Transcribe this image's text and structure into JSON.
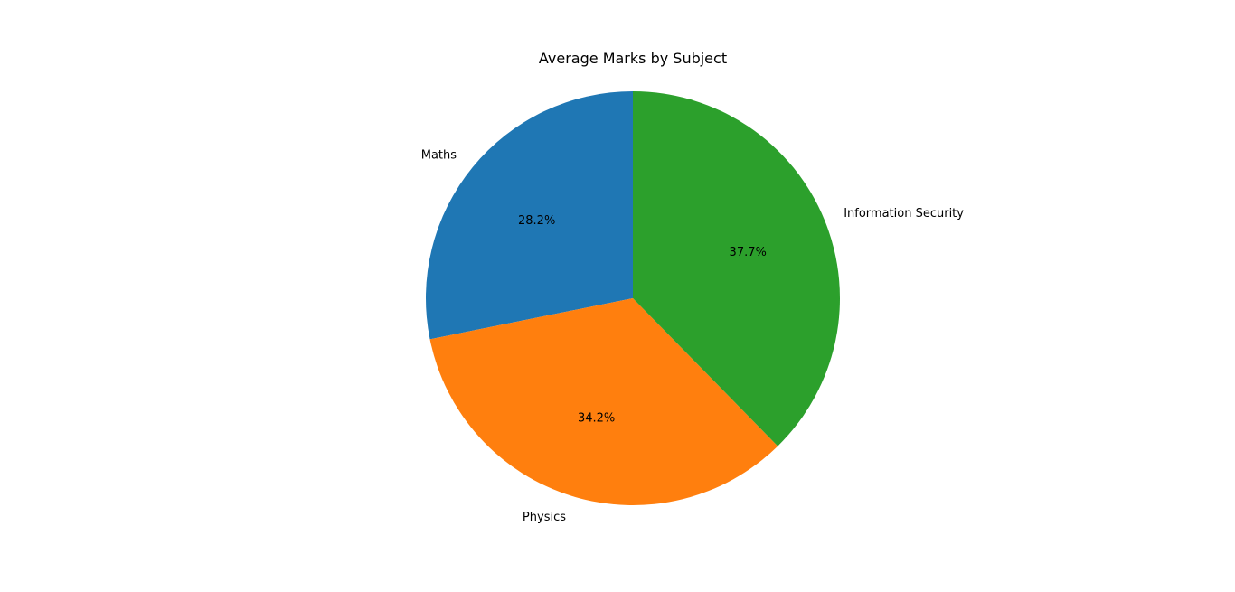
{
  "chart_data": {
    "type": "pie",
    "title": "Average Marks by Subject",
    "categories": [
      "Maths",
      "Physics",
      "Information Security"
    ],
    "values": [
      28.2,
      34.2,
      37.7
    ],
    "percent_labels": [
      "28.2%",
      "34.2%",
      "37.7%"
    ],
    "colors": [
      "#1f77b4",
      "#ff7f0e",
      "#2ca02c"
    ],
    "start_angle_deg": 90,
    "direction": "counterclockwise"
  }
}
